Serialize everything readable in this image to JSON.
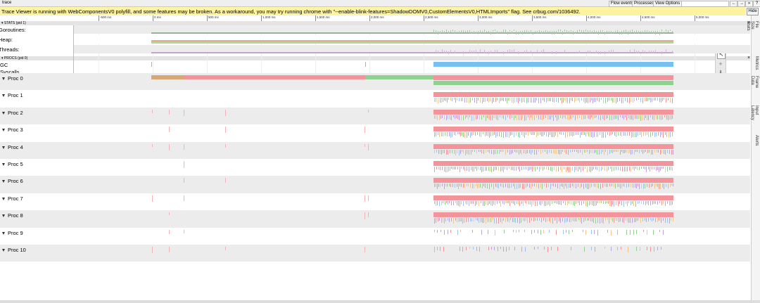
{
  "tab_title": "trace",
  "toolbar": {
    "buttons": [
      "Flow events",
      "Processes",
      "View Options"
    ],
    "nav": [
      "←",
      "→",
      "»",
      "?"
    ]
  },
  "warning": "Trace Viewer is running with WebComponentsV0 polyfill, and some features may be broken. As a workaround, you may try running chrome with \"--enable-blink-features=ShadowDOMV0,CustomElementsV0,HTMLImports\" flag. See crbug.com/1036492.",
  "hide_button": "Hide",
  "ruler": {
    "labels": [
      "-500 ms",
      "0 ms",
      "500 ms",
      "1,000 ms",
      "1,500 ms",
      "2,000 ms",
      "2,500 ms",
      "3,000 ms",
      "3,500 ms",
      "4,000 ms",
      "4,500 ms",
      "5,000 ms"
    ]
  },
  "stats": {
    "header": "▾ STATS (pid 1)",
    "close": "×",
    "rows": [
      "Goroutines:",
      "Heap:",
      "Threads:"
    ]
  },
  "procs": {
    "header": "▾ PROCS (pid 0)",
    "close": "×",
    "rows": [
      "GC",
      "Syscalls"
    ],
    "procs": [
      "Proc 0",
      "Proc 1",
      "Proc 2",
      "Proc 3",
      "Proc 4",
      "Proc 5",
      "Proc 6",
      "Proc 7",
      "Proc 8",
      "Proc 9",
      "Proc 10"
    ]
  },
  "side_tabs": [
    "File Size Stats",
    "Metrics",
    "Frame Data",
    "Input Latency",
    "Alerts"
  ]
}
